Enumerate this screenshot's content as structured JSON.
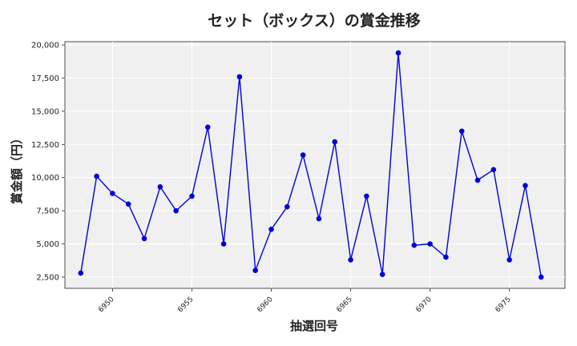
{
  "chart_data": {
    "type": "line",
    "title": "セット（ボックス）の賞金推移",
    "xlabel": "抽選回号",
    "ylabel": "賞金額（円）",
    "x": [
      6948,
      6949,
      6950,
      6951,
      6952,
      6953,
      6954,
      6955,
      6956,
      6957,
      6958,
      6959,
      6960,
      6961,
      6962,
      6963,
      6964,
      6965,
      6966,
      6967,
      6968,
      6969,
      6970,
      6971,
      6972,
      6973,
      6974,
      6975,
      6976,
      6977
    ],
    "series": [
      {
        "values": [
          2800,
          10100,
          8800,
          8000,
          5400,
          9300,
          7500,
          8600,
          13800,
          5000,
          17600,
          3000,
          6100,
          7800,
          11700,
          6900,
          12700,
          3800,
          8600,
          2700,
          19400,
          4900,
          5000,
          4000,
          13500,
          9800,
          10600,
          3800,
          9400,
          2500
        ],
        "color": "#0000dd"
      }
    ],
    "xticks": [
      6950,
      6955,
      6960,
      6965,
      6970,
      6975
    ],
    "xtick_labels": [
      "6950",
      "6955",
      "6960",
      "6965",
      "6970",
      "6975"
    ],
    "yticks": [
      2500,
      5000,
      7500,
      10000,
      12500,
      15000,
      17500,
      20000
    ],
    "ytick_labels": [
      "2,500",
      "5,000",
      "7,500",
      "10,000",
      "12,500",
      "15,000",
      "17,500",
      "20,000"
    ],
    "xlim": [
      6947.0,
      6978.5
    ],
    "ylim": [
      1650,
      20250
    ],
    "grid": true,
    "background": "#f0f0f0"
  }
}
